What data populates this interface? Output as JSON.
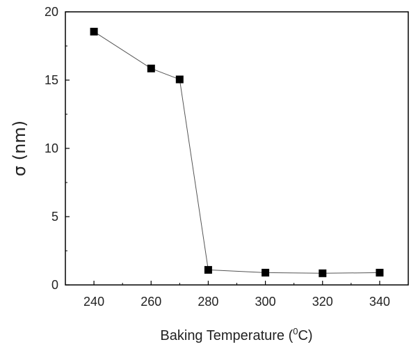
{
  "chart_data": {
    "type": "line",
    "xlabel_main": "Baking Temperature (",
    "xlabel_sup": "0",
    "xlabel_end": "C)",
    "ylabel": "σ (nm)",
    "xlim": [
      230,
      350
    ],
    "ylim": [
      0,
      20
    ],
    "x_ticks": [
      240,
      260,
      280,
      300,
      320,
      340
    ],
    "y_ticks": [
      0,
      5,
      10,
      15,
      20
    ],
    "x": [
      240,
      260,
      270,
      280,
      300,
      320,
      340
    ],
    "y": [
      18.55,
      15.85,
      15.05,
      1.1,
      0.9,
      0.85,
      0.9
    ],
    "marker": "square",
    "marker_color": "#000000",
    "line_color": "#555555",
    "grid": false
  }
}
